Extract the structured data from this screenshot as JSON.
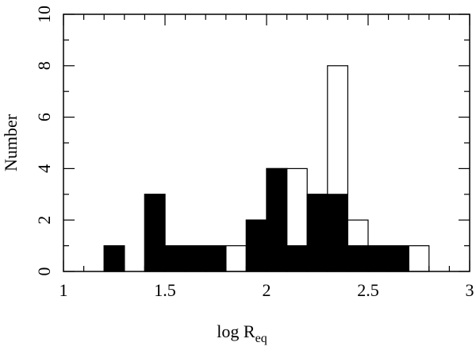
{
  "chart_data": {
    "type": "histogram",
    "x_label": "log R",
    "x_label_sub": "eq",
    "y_label": "Number",
    "bins": [
      1.2,
      1.3,
      1.4,
      1.5,
      1.6,
      1.7,
      1.8,
      1.9,
      2.0,
      2.1,
      2.2,
      2.3,
      2.4,
      2.5,
      2.6,
      2.7,
      2.8
    ],
    "series": [
      {
        "color": "#ffffff",
        "values": [
          1,
          0,
          3,
          1,
          1,
          1,
          1,
          2,
          4,
          4,
          3,
          8,
          2,
          1,
          1,
          1
        ]
      },
      {
        "color": "#000000",
        "values": [
          1,
          0,
          3,
          1,
          1,
          1,
          0,
          2,
          4,
          1,
          3,
          3,
          1,
          1,
          1,
          0
        ]
      }
    ],
    "xlim": [
      1,
      3
    ],
    "xticks": [
      1,
      1.5,
      2,
      2.5,
      3
    ],
    "xminorticks": [
      1.1,
      1.2,
      1.3,
      1.4,
      1.6,
      1.7,
      1.8,
      1.9,
      2.1,
      2.2,
      2.3,
      2.4,
      2.6,
      2.7,
      2.8,
      2.9
    ],
    "ylim": [
      0,
      10
    ],
    "yticks": [
      0,
      2,
      4,
      6,
      8,
      10
    ],
    "yminorticks": [
      1,
      3,
      5,
      7,
      9
    ]
  }
}
